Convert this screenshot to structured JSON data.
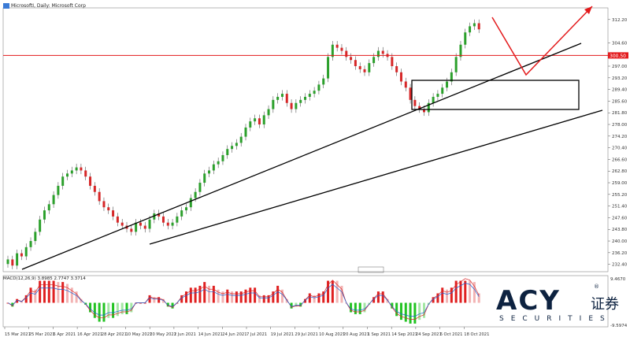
{
  "header": {
    "title": "MicrosoftI, Daily: Microsoft Corp"
  },
  "macd_label": "MACD(12,26,9) 3.8985 2.7747 3.3714",
  "brand": {
    "name": "ACY",
    "cn": "证券",
    "sub": "SECURITIES",
    "reg": "®"
  },
  "colors": {
    "bull": "#2ca02c",
    "bear": "#d62728",
    "hline": "#e31a1c",
    "arrow": "#e31a1c",
    "trend": "#000000"
  },
  "chart_data": {
    "type": "candlestick",
    "price_axis": {
      "ticks": [
        312.2,
        304.6,
        297.0,
        293.2,
        289.4,
        285.6,
        281.8,
        278.0,
        274.2,
        270.4,
        266.6,
        262.8,
        259.0,
        255.2,
        251.4,
        247.6,
        243.8,
        240.0,
        236.2,
        232.4
      ],
      "ylim": [
        230.0,
        316.0
      ]
    },
    "horizontal_line": {
      "value": 300.5,
      "label": "300.50"
    },
    "date_labels": [
      "15 Mar 2021",
      "25 Mar 2021",
      "6 Apr 2021",
      "16 Apr 2021",
      "28 Apr 2021",
      "10 May 2021",
      "20 May 2021",
      "2 Jun 2021",
      "14 Jun 2021",
      "24 Jun 2021",
      "7 Jul 2021",
      "19 Jul 2021",
      "29 Jul 2021",
      "10 Aug 2021",
      "20 Aug 2021",
      "1 Sep 2021",
      "14 Sep 2021",
      "24 Sep 2021",
      "6 Oct 2021",
      "18 Oct 2021"
    ],
    "closes": [
      234,
      232,
      236,
      235,
      238,
      240,
      243,
      247,
      250,
      252,
      255,
      258,
      261,
      262,
      263,
      264,
      263,
      261,
      258,
      256,
      253,
      251,
      250,
      248,
      246,
      245,
      244,
      243,
      246,
      245,
      244,
      247,
      249,
      248,
      246,
      245,
      246,
      248,
      250,
      251,
      254,
      256,
      259,
      262,
      263,
      265,
      266,
      268,
      270,
      271,
      272,
      274,
      277,
      279,
      280,
      278,
      281,
      283,
      286,
      287,
      288,
      285,
      283,
      285,
      286,
      287,
      288,
      289,
      291,
      293,
      300,
      304,
      303,
      302,
      300,
      299,
      297,
      296,
      295,
      298,
      300,
      302,
      301,
      300,
      297,
      295,
      292,
      290,
      286,
      284,
      283,
      282,
      285,
      287,
      288,
      290,
      292,
      295,
      300,
      304,
      308,
      310,
      311,
      309
    ],
    "macd": {
      "min": -9.5,
      "max": 9.5,
      "top_label": "9.4670",
      "bottom_label": "-9.5974"
    },
    "annotations": [
      "rectangle support zone",
      "three trendlines",
      "red projected path arrow"
    ]
  }
}
